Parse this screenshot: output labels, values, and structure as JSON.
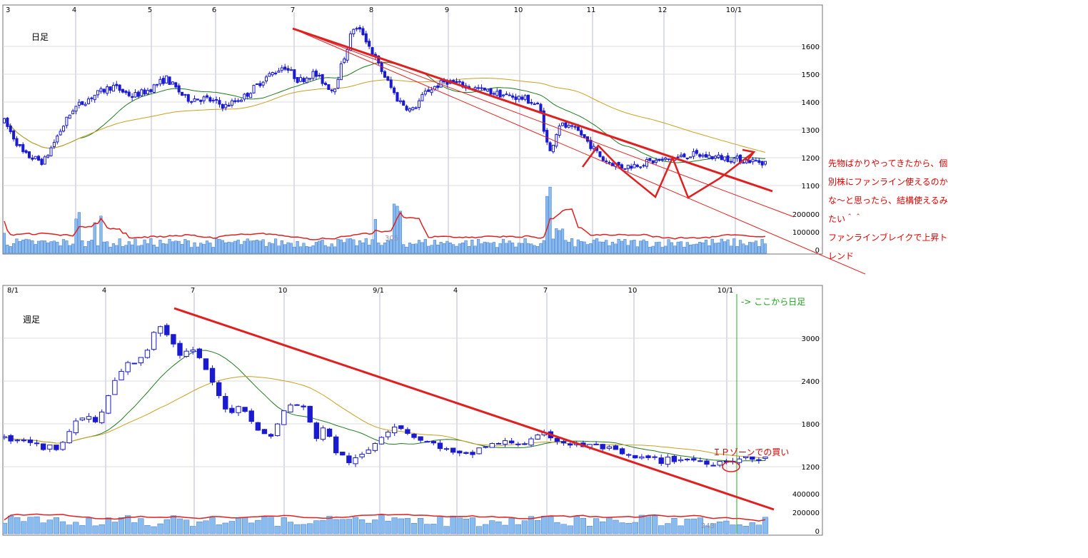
{
  "chart_data": [
    {
      "type": "candlestick",
      "title": "日足",
      "x_ticks": [
        "3",
        "4",
        "5",
        "6",
        "7",
        "8",
        "9",
        "10",
        "11",
        "12",
        "10/1"
      ],
      "y_ticks": [
        "1600",
        "1500",
        "1400",
        "1300",
        "1200",
        "1100"
      ],
      "volume_ticks": [
        "200000",
        "100000",
        "0"
      ],
      "volume_marker": "305",
      "ylim": [
        1020,
        1700
      ],
      "volume_ylim": [
        0,
        260000
      ],
      "grid": true,
      "annotation_lines": [
        "先物ばかりやってきたから、個",
        "別株にファンライン使えるのか",
        "な～と思ったら、結構使えるみ",
        "たい＾＾",
        "ファンラインブレイクで上昇ト",
        "レンド"
      ]
    },
    {
      "type": "candlestick",
      "title": "週足",
      "x_ticks": [
        "8/1",
        "4",
        "7",
        "10",
        "9/1",
        "4",
        "7",
        "10",
        "10/1"
      ],
      "y_ticks": [
        "3000",
        "2400",
        "1800",
        "1200"
      ],
      "volume_ticks": [
        "400000",
        "200000",
        "0"
      ],
      "volume_marker": "243",
      "ylim": [
        900,
        3600
      ],
      "volume_ylim": [
        0,
        480000
      ],
      "grid": true,
      "annotations": {
        "buy_zone": "ＩＰゾーンでの買い",
        "daily_from_here": "-> ここから日足"
      }
    }
  ],
  "colors": {
    "candle": "#1a1ad0",
    "trendline": "#e02020",
    "ma_short": "#1f7a1f",
    "ma_long": "#c8a020",
    "volume": "#88bbee",
    "volume_ma": "#e02020",
    "marker_line": "#20b020"
  }
}
